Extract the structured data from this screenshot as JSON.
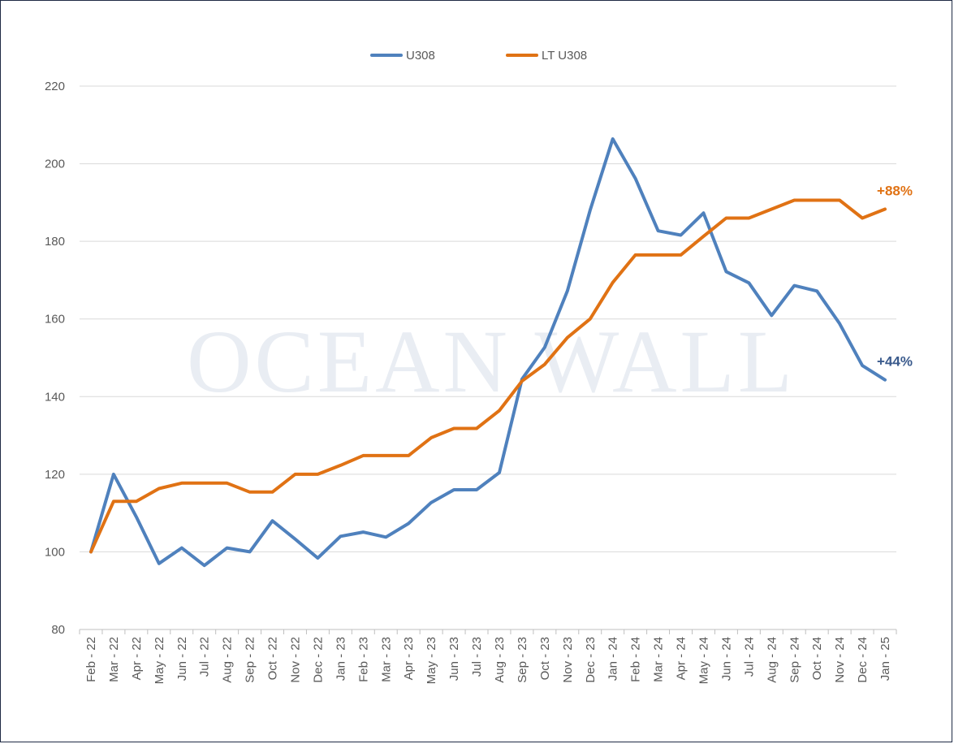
{
  "watermark": "OCEAN WALL",
  "chart_data": {
    "type": "line",
    "title": "",
    "xlabel": "",
    "ylabel": "",
    "ylim": [
      80,
      220
    ],
    "yticks": [
      80,
      100,
      120,
      140,
      160,
      180,
      200,
      220
    ],
    "grid": "horizontal",
    "legend_position": "top-center",
    "categories": [
      "Feb - 22",
      "Mar - 22",
      "Apr - 22",
      "May - 22",
      "Jun - 22",
      "Jul - 22",
      "Aug - 22",
      "Sep - 22",
      "Oct - 22",
      "Nov - 22",
      "Dec - 22",
      "Jan - 23",
      "Feb - 23",
      "Mar - 23",
      "Apr - 23",
      "May - 23",
      "Jun - 23",
      "Jul - 23",
      "Aug - 23",
      "Sep - 23",
      "Oct - 23",
      "Nov - 23",
      "Dec - 23",
      "Jan - 24",
      "Feb - 24",
      "Mar - 24",
      "Apr - 24",
      "May - 24",
      "Jun - 24",
      "Jul - 24",
      "Aug - 24",
      "Sep - 24",
      "Oct - 24",
      "Nov - 24",
      "Dec - 24",
      "Jan - 25"
    ],
    "series": [
      {
        "name": "U308",
        "color": "#4f81bd",
        "values": [
          100,
          120,
          109,
          97,
          101,
          96.5,
          101,
          100,
          108,
          103.3,
          98.4,
          104,
          105.1,
          103.8,
          107.3,
          112.7,
          116,
          116,
          120.4,
          144.5,
          152.7,
          167.2,
          188,
          206.4,
          196.2,
          182.7,
          181.6,
          187.3,
          172.2,
          169.3,
          160.9,
          168.6,
          167.2,
          158.8,
          148,
          144.3
        ],
        "end_label": "+44%",
        "end_label_color": "#3a5a8c"
      },
      {
        "name": "LT U308",
        "color": "#e07214",
        "values": [
          100,
          113,
          113,
          116.3,
          117.7,
          117.7,
          117.7,
          115.4,
          115.4,
          120,
          120,
          122.3,
          124.8,
          124.8,
          124.8,
          129.4,
          131.8,
          131.8,
          136.4,
          144,
          148.3,
          155.2,
          160,
          169.4,
          176.5,
          176.5,
          176.5,
          181.3,
          186,
          186,
          188.3,
          190.6,
          190.6,
          190.6,
          186,
          188.3
        ],
        "end_label": "+88%",
        "end_label_color": "#e07214"
      }
    ]
  }
}
